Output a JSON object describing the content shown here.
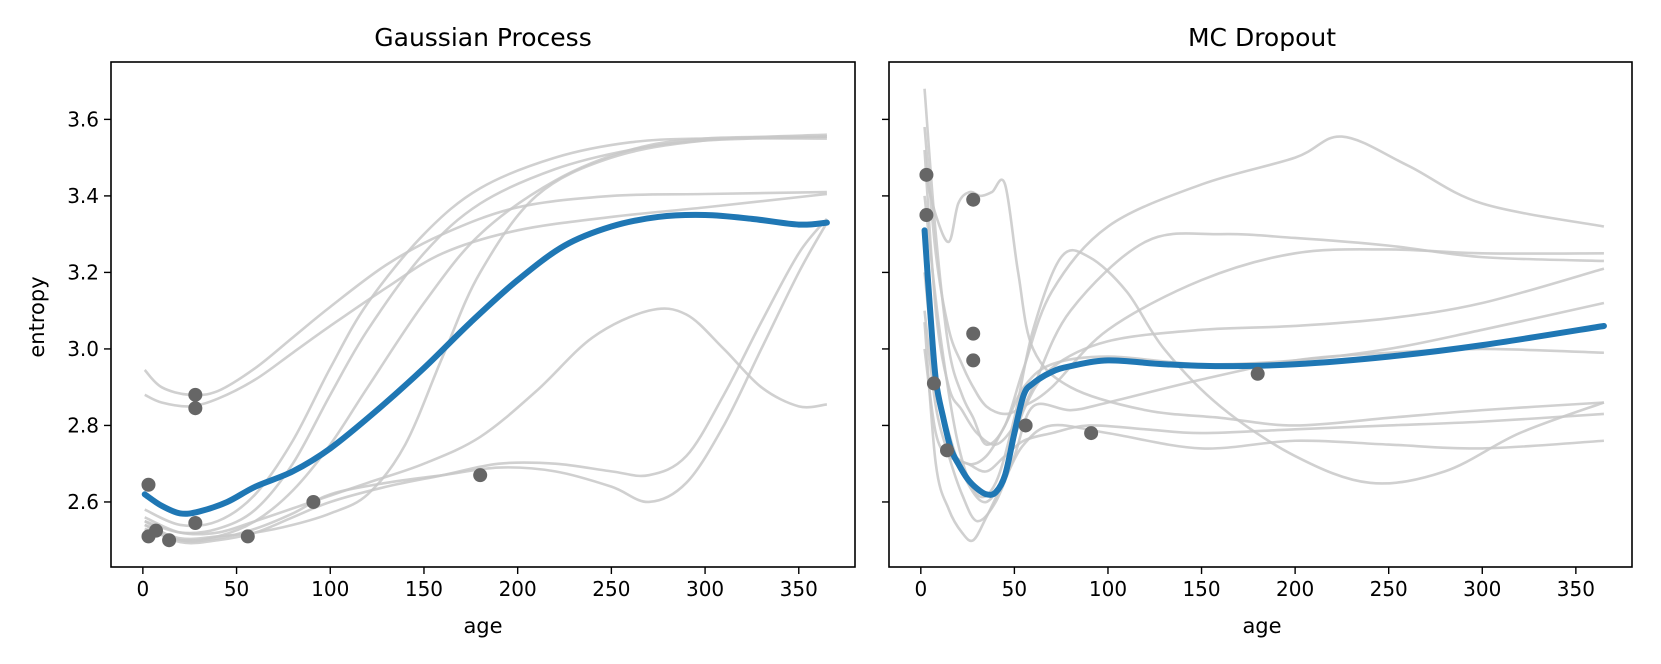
{
  "chart_data": [
    {
      "type": "line",
      "title": "Gaussian Process",
      "xlabel": "age",
      "ylabel": "entropy",
      "xlim": [
        -17,
        380
      ],
      "ylim": [
        2.43,
        3.75
      ],
      "xticks": [
        0,
        50,
        100,
        150,
        200,
        250,
        300,
        350
      ],
      "yticks": [
        2.6,
        2.8,
        3.0,
        3.2,
        3.4,
        3.6
      ],
      "xtick_labels": [
        "0",
        "50",
        "100",
        "150",
        "200",
        "250",
        "300",
        "350"
      ],
      "ytick_labels": [
        "2.6",
        "2.8",
        "3.0",
        "3.2",
        "3.4",
        "3.6"
      ],
      "mean": {
        "name": "mean",
        "color": "#1f77b4",
        "x": [
          1,
          10,
          20,
          30,
          45,
          60,
          80,
          100,
          125,
          150,
          175,
          200,
          225,
          250,
          275,
          300,
          325,
          350,
          365
        ],
        "y": [
          2.62,
          2.59,
          2.57,
          2.575,
          2.6,
          2.64,
          2.68,
          2.74,
          2.84,
          2.95,
          3.07,
          3.18,
          3.27,
          3.32,
          3.345,
          3.35,
          3.34,
          3.325,
          3.33
        ]
      },
      "samples": [
        {
          "x": [
            1,
            10,
            25,
            40,
            60,
            80,
            100,
            130,
            160,
            200,
            250,
            300,
            365
          ],
          "y": [
            2.945,
            2.9,
            2.88,
            2.89,
            2.95,
            3.03,
            3.11,
            3.22,
            3.3,
            3.37,
            3.4,
            3.405,
            3.41
          ]
        },
        {
          "x": [
            1,
            10,
            25,
            40,
            60,
            80,
            100,
            130,
            160,
            200,
            250,
            300,
            365
          ],
          "y": [
            2.88,
            2.86,
            2.85,
            2.87,
            2.92,
            2.99,
            3.06,
            3.16,
            3.25,
            3.31,
            3.345,
            3.37,
            3.405
          ]
        },
        {
          "x": [
            1,
            20,
            40,
            60,
            80,
            100,
            120,
            150,
            180,
            220,
            260,
            300,
            365
          ],
          "y": [
            2.58,
            2.54,
            2.55,
            2.62,
            2.76,
            2.95,
            3.12,
            3.3,
            3.42,
            3.5,
            3.54,
            3.55,
            3.55
          ]
        },
        {
          "x": [
            1,
            20,
            40,
            60,
            80,
            100,
            120,
            150,
            180,
            220,
            260,
            300,
            365
          ],
          "y": [
            2.55,
            2.52,
            2.53,
            2.58,
            2.7,
            2.88,
            3.05,
            3.25,
            3.38,
            3.47,
            3.52,
            3.545,
            3.555
          ]
        },
        {
          "x": [
            1,
            20,
            40,
            60,
            80,
            100,
            120,
            150,
            180,
            220,
            260,
            300,
            365
          ],
          "y": [
            2.53,
            2.5,
            2.51,
            2.55,
            2.63,
            2.75,
            2.9,
            3.12,
            3.3,
            3.44,
            3.52,
            3.55,
            3.555
          ]
        },
        {
          "x": [
            1,
            20,
            40,
            60,
            80,
            100,
            120,
            140,
            160,
            180,
            210,
            250,
            300,
            365
          ],
          "y": [
            2.54,
            2.505,
            2.51,
            2.52,
            2.54,
            2.57,
            2.62,
            2.75,
            2.98,
            3.2,
            3.4,
            3.5,
            3.545,
            3.56
          ]
        },
        {
          "x": [
            1,
            20,
            40,
            60,
            90,
            120,
            150,
            180,
            210,
            240,
            270,
            290,
            310,
            330,
            350,
            365
          ],
          "y": [
            2.56,
            2.52,
            2.52,
            2.55,
            2.6,
            2.65,
            2.7,
            2.77,
            2.89,
            3.03,
            3.1,
            3.09,
            3.0,
            2.9,
            2.85,
            2.855
          ]
        },
        {
          "x": [
            1,
            20,
            40,
            60,
            80,
            100,
            130,
            160,
            190,
            220,
            250,
            270,
            290,
            310,
            330,
            350,
            365
          ],
          "y": [
            2.55,
            2.5,
            2.505,
            2.53,
            2.57,
            2.62,
            2.65,
            2.67,
            2.69,
            2.68,
            2.64,
            2.6,
            2.65,
            2.8,
            3.0,
            3.2,
            3.33
          ]
        },
        {
          "x": [
            1,
            20,
            40,
            60,
            80,
            100,
            130,
            160,
            190,
            220,
            250,
            270,
            290,
            310,
            330,
            350,
            365
          ],
          "y": [
            2.54,
            2.495,
            2.5,
            2.52,
            2.56,
            2.6,
            2.64,
            2.67,
            2.7,
            2.7,
            2.68,
            2.67,
            2.72,
            2.88,
            3.07,
            3.25,
            3.34
          ]
        }
      ],
      "points": {
        "x": [
          3,
          3,
          7,
          14,
          28,
          28,
          28,
          56,
          91,
          180
        ],
        "y": [
          2.645,
          2.51,
          2.525,
          2.5,
          2.88,
          2.845,
          2.545,
          2.51,
          2.6,
          2.67
        ]
      }
    },
    {
      "type": "line",
      "title": "MC Dropout",
      "xlabel": "age",
      "ylabel": "",
      "xlim": [
        -17,
        380
      ],
      "ylim": [
        2.43,
        3.75
      ],
      "xticks": [
        0,
        50,
        100,
        150,
        200,
        250,
        300,
        350
      ],
      "yticks": [
        2.6,
        2.8,
        3.0,
        3.2,
        3.4,
        3.6
      ],
      "xtick_labels": [
        "0",
        "50",
        "100",
        "150",
        "200",
        "250",
        "300",
        "350"
      ],
      "ytick_labels": [],
      "mean": {
        "name": "mean",
        "color": "#1f77b4",
        "x": [
          2,
          5,
          8,
          12,
          16,
          20,
          25,
          30,
          35,
          40,
          45,
          50,
          55,
          60,
          70,
          80,
          100,
          130,
          160,
          200,
          250,
          300,
          365
        ],
        "y": [
          3.31,
          3.1,
          2.92,
          2.82,
          2.74,
          2.7,
          2.66,
          2.635,
          2.62,
          2.625,
          2.67,
          2.78,
          2.88,
          2.91,
          2.94,
          2.955,
          2.97,
          2.96,
          2.955,
          2.96,
          2.98,
          3.01,
          3.06
        ]
      },
      "samples": [
        {
          "x": [
            2,
            8,
            15,
            22,
            28,
            35,
            45,
            55,
            70,
            100,
            150,
            200,
            225,
            260,
            300,
            365
          ],
          "y": [
            3.68,
            3.3,
            3.0,
            2.88,
            2.82,
            2.75,
            2.8,
            2.95,
            3.15,
            3.32,
            3.43,
            3.5,
            3.555,
            3.48,
            3.38,
            3.32
          ]
        },
        {
          "x": [
            2,
            8,
            15,
            22,
            28,
            35,
            45,
            55,
            70,
            100,
            150,
            200,
            250,
            300,
            365
          ],
          "y": [
            3.58,
            3.25,
            3.05,
            2.96,
            2.9,
            2.85,
            2.83,
            2.85,
            2.9,
            3.05,
            3.18,
            3.25,
            3.26,
            3.25,
            3.25
          ]
        },
        {
          "x": [
            2,
            8,
            15,
            22,
            30,
            40,
            50,
            60,
            80,
            120,
            160,
            200,
            250,
            300,
            365
          ],
          "y": [
            3.52,
            3.1,
            2.9,
            2.84,
            2.78,
            2.75,
            2.8,
            2.9,
            3.1,
            3.28,
            3.3,
            3.29,
            3.27,
            3.24,
            3.23
          ]
        },
        {
          "x": [
            2,
            8,
            15,
            20,
            26,
            32,
            38,
            45,
            52,
            60,
            80,
            120,
            160,
            200,
            250,
            300,
            365
          ],
          "y": [
            3.47,
            3.35,
            3.28,
            3.38,
            3.41,
            3.4,
            3.41,
            3.43,
            3.2,
            3.0,
            2.9,
            2.84,
            2.82,
            2.8,
            2.82,
            2.84,
            2.86
          ]
        },
        {
          "x": [
            2,
            10,
            20,
            30,
            40,
            50,
            60,
            75,
            90,
            110,
            130,
            160,
            200,
            240,
            280,
            320,
            365
          ],
          "y": [
            3.4,
            3.05,
            2.75,
            2.62,
            2.65,
            2.82,
            3.05,
            3.24,
            3.24,
            3.15,
            3.0,
            2.85,
            2.72,
            2.65,
            2.68,
            2.78,
            2.86
          ]
        },
        {
          "x": [
            2,
            8,
            15,
            25,
            35,
            45,
            55,
            70,
            100,
            150,
            200,
            250,
            300,
            365
          ],
          "y": [
            3.3,
            2.95,
            2.78,
            2.65,
            2.6,
            2.68,
            2.84,
            2.95,
            3.02,
            3.05,
            3.06,
            3.08,
            3.12,
            3.21
          ]
        },
        {
          "x": [
            2,
            8,
            15,
            25,
            35,
            45,
            55,
            70,
            100,
            150,
            200,
            250,
            300,
            365
          ],
          "y": [
            3.2,
            2.92,
            2.75,
            2.7,
            2.72,
            2.8,
            2.9,
            2.96,
            2.98,
            2.96,
            2.97,
            3.0,
            3.05,
            3.12
          ]
        },
        {
          "x": [
            2,
            8,
            15,
            22,
            30,
            40,
            50,
            60,
            80,
            100,
            150,
            200,
            250,
            300,
            365
          ],
          "y": [
            3.1,
            2.85,
            2.72,
            2.62,
            2.55,
            2.6,
            2.72,
            2.85,
            2.84,
            2.86,
            2.92,
            2.97,
            2.99,
            3.0,
            2.99
          ]
        },
        {
          "x": [
            2,
            8,
            15,
            22,
            28,
            35,
            45,
            55,
            70,
            100,
            150,
            200,
            250,
            300,
            365
          ],
          "y": [
            3.07,
            2.7,
            2.58,
            2.52,
            2.5,
            2.56,
            2.66,
            2.75,
            2.8,
            2.78,
            2.74,
            2.76,
            2.75,
            2.74,
            2.76
          ]
        },
        {
          "x": [
            2,
            8,
            15,
            25,
            35,
            45,
            55,
            70,
            90,
            120,
            150,
            200,
            250,
            300,
            365
          ],
          "y": [
            3.0,
            2.78,
            2.72,
            2.7,
            2.68,
            2.72,
            2.76,
            2.78,
            2.8,
            2.79,
            2.78,
            2.79,
            2.8,
            2.81,
            2.83
          ]
        }
      ],
      "points": {
        "x": [
          3,
          3,
          7,
          14,
          28,
          28,
          28,
          56,
          91,
          180
        ],
        "y": [
          3.455,
          3.35,
          2.91,
          2.735,
          3.39,
          3.04,
          2.97,
          2.8,
          2.78,
          2.935
        ]
      }
    }
  ]
}
